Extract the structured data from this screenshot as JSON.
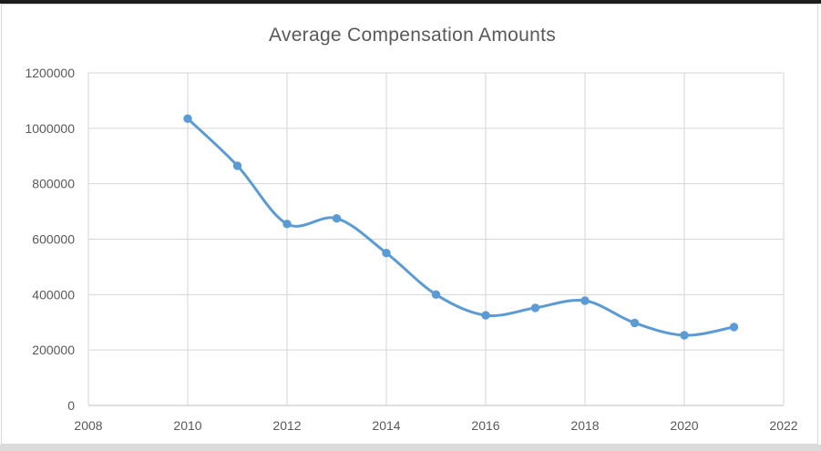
{
  "window": {
    "top_edge_color": "#1c1c1c",
    "canvas_bg": "#ffffff",
    "frame_border_color": "#d9d9d9",
    "outer_strip_color": "#dbdbdb"
  },
  "chart_data": {
    "type": "line",
    "title": "Average Compensation Amounts",
    "x": [
      2010,
      2011,
      2012,
      2013,
      2014,
      2015,
      2016,
      2017,
      2018,
      2019,
      2020,
      2021
    ],
    "values": [
      1035000,
      865000,
      655000,
      675000,
      550000,
      400000,
      325000,
      352000,
      378000,
      298000,
      253000,
      283000
    ],
    "x_ticks": [
      2008,
      2010,
      2012,
      2014,
      2016,
      2018,
      2020,
      2022
    ],
    "y_ticks": [
      0,
      200000,
      400000,
      600000,
      800000,
      1000000,
      1200000
    ],
    "xlim": [
      2008,
      2022
    ],
    "ylim": [
      0,
      1200000
    ],
    "xlabel": "",
    "ylabel": "",
    "grid": true,
    "legend": "none",
    "smooth": true,
    "marker": "circle",
    "line_color": "#5B9BD5",
    "marker_color": "#5B9BD5",
    "grid_color": "#d6d6d6",
    "axis_color": "#bfbfbf",
    "tick_label_color": "#595959",
    "title_color": "#595959"
  }
}
